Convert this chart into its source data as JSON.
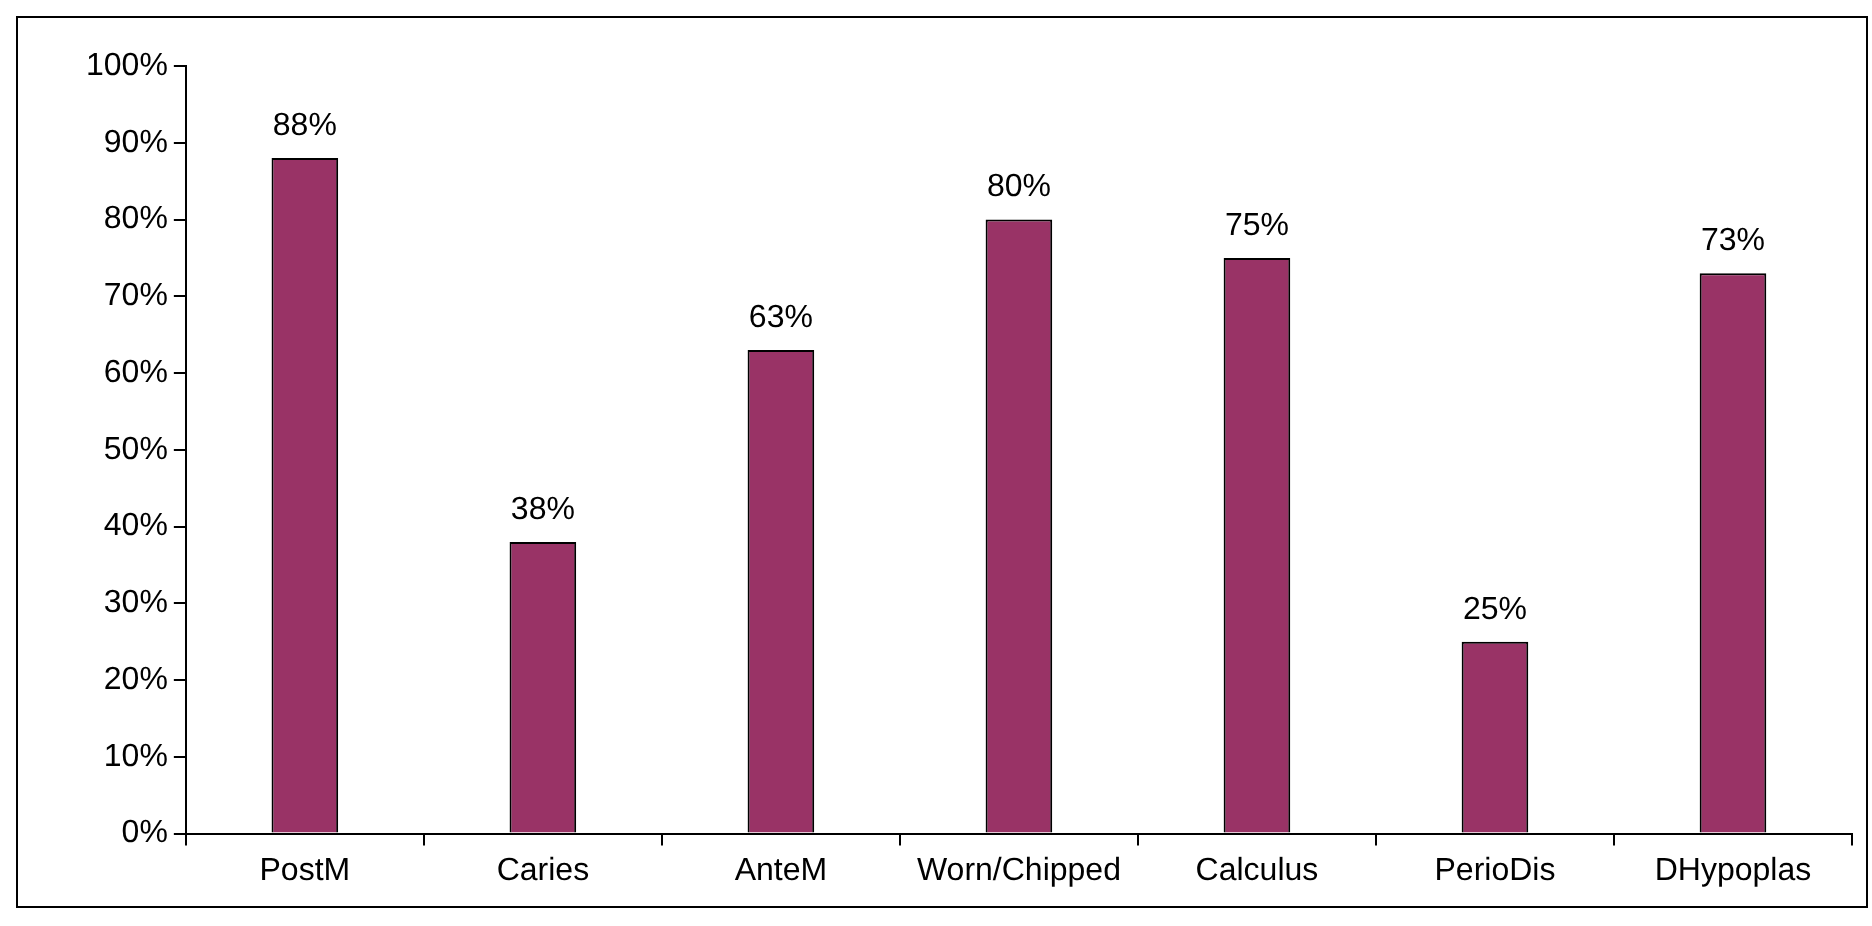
{
  "chart_data": {
    "type": "bar",
    "categories": [
      "PostM",
      "Caries",
      "AnteM",
      "Worn/Chipped",
      "Calculus",
      "PerioDis",
      "DHypoplas"
    ],
    "values": [
      88,
      38,
      63,
      80,
      75,
      25,
      73
    ],
    "value_labels": [
      "88%",
      "38%",
      "63%",
      "80%",
      "75%",
      "25%",
      "73%"
    ],
    "color": "#993366",
    "ylim": [
      0,
      100
    ],
    "yticks": [
      {
        "value": 0,
        "label": "0%"
      },
      {
        "value": 10,
        "label": "10%"
      },
      {
        "value": 20,
        "label": "20%"
      },
      {
        "value": 30,
        "label": "30%"
      },
      {
        "value": 40,
        "label": "40%"
      },
      {
        "value": 50,
        "label": "50%"
      },
      {
        "value": 60,
        "label": "60%"
      },
      {
        "value": 70,
        "label": "70%"
      },
      {
        "value": 80,
        "label": "80%"
      },
      {
        "value": 90,
        "label": "90%"
      },
      {
        "value": 100,
        "label": "100%"
      }
    ],
    "grid": false,
    "legend": false
  }
}
